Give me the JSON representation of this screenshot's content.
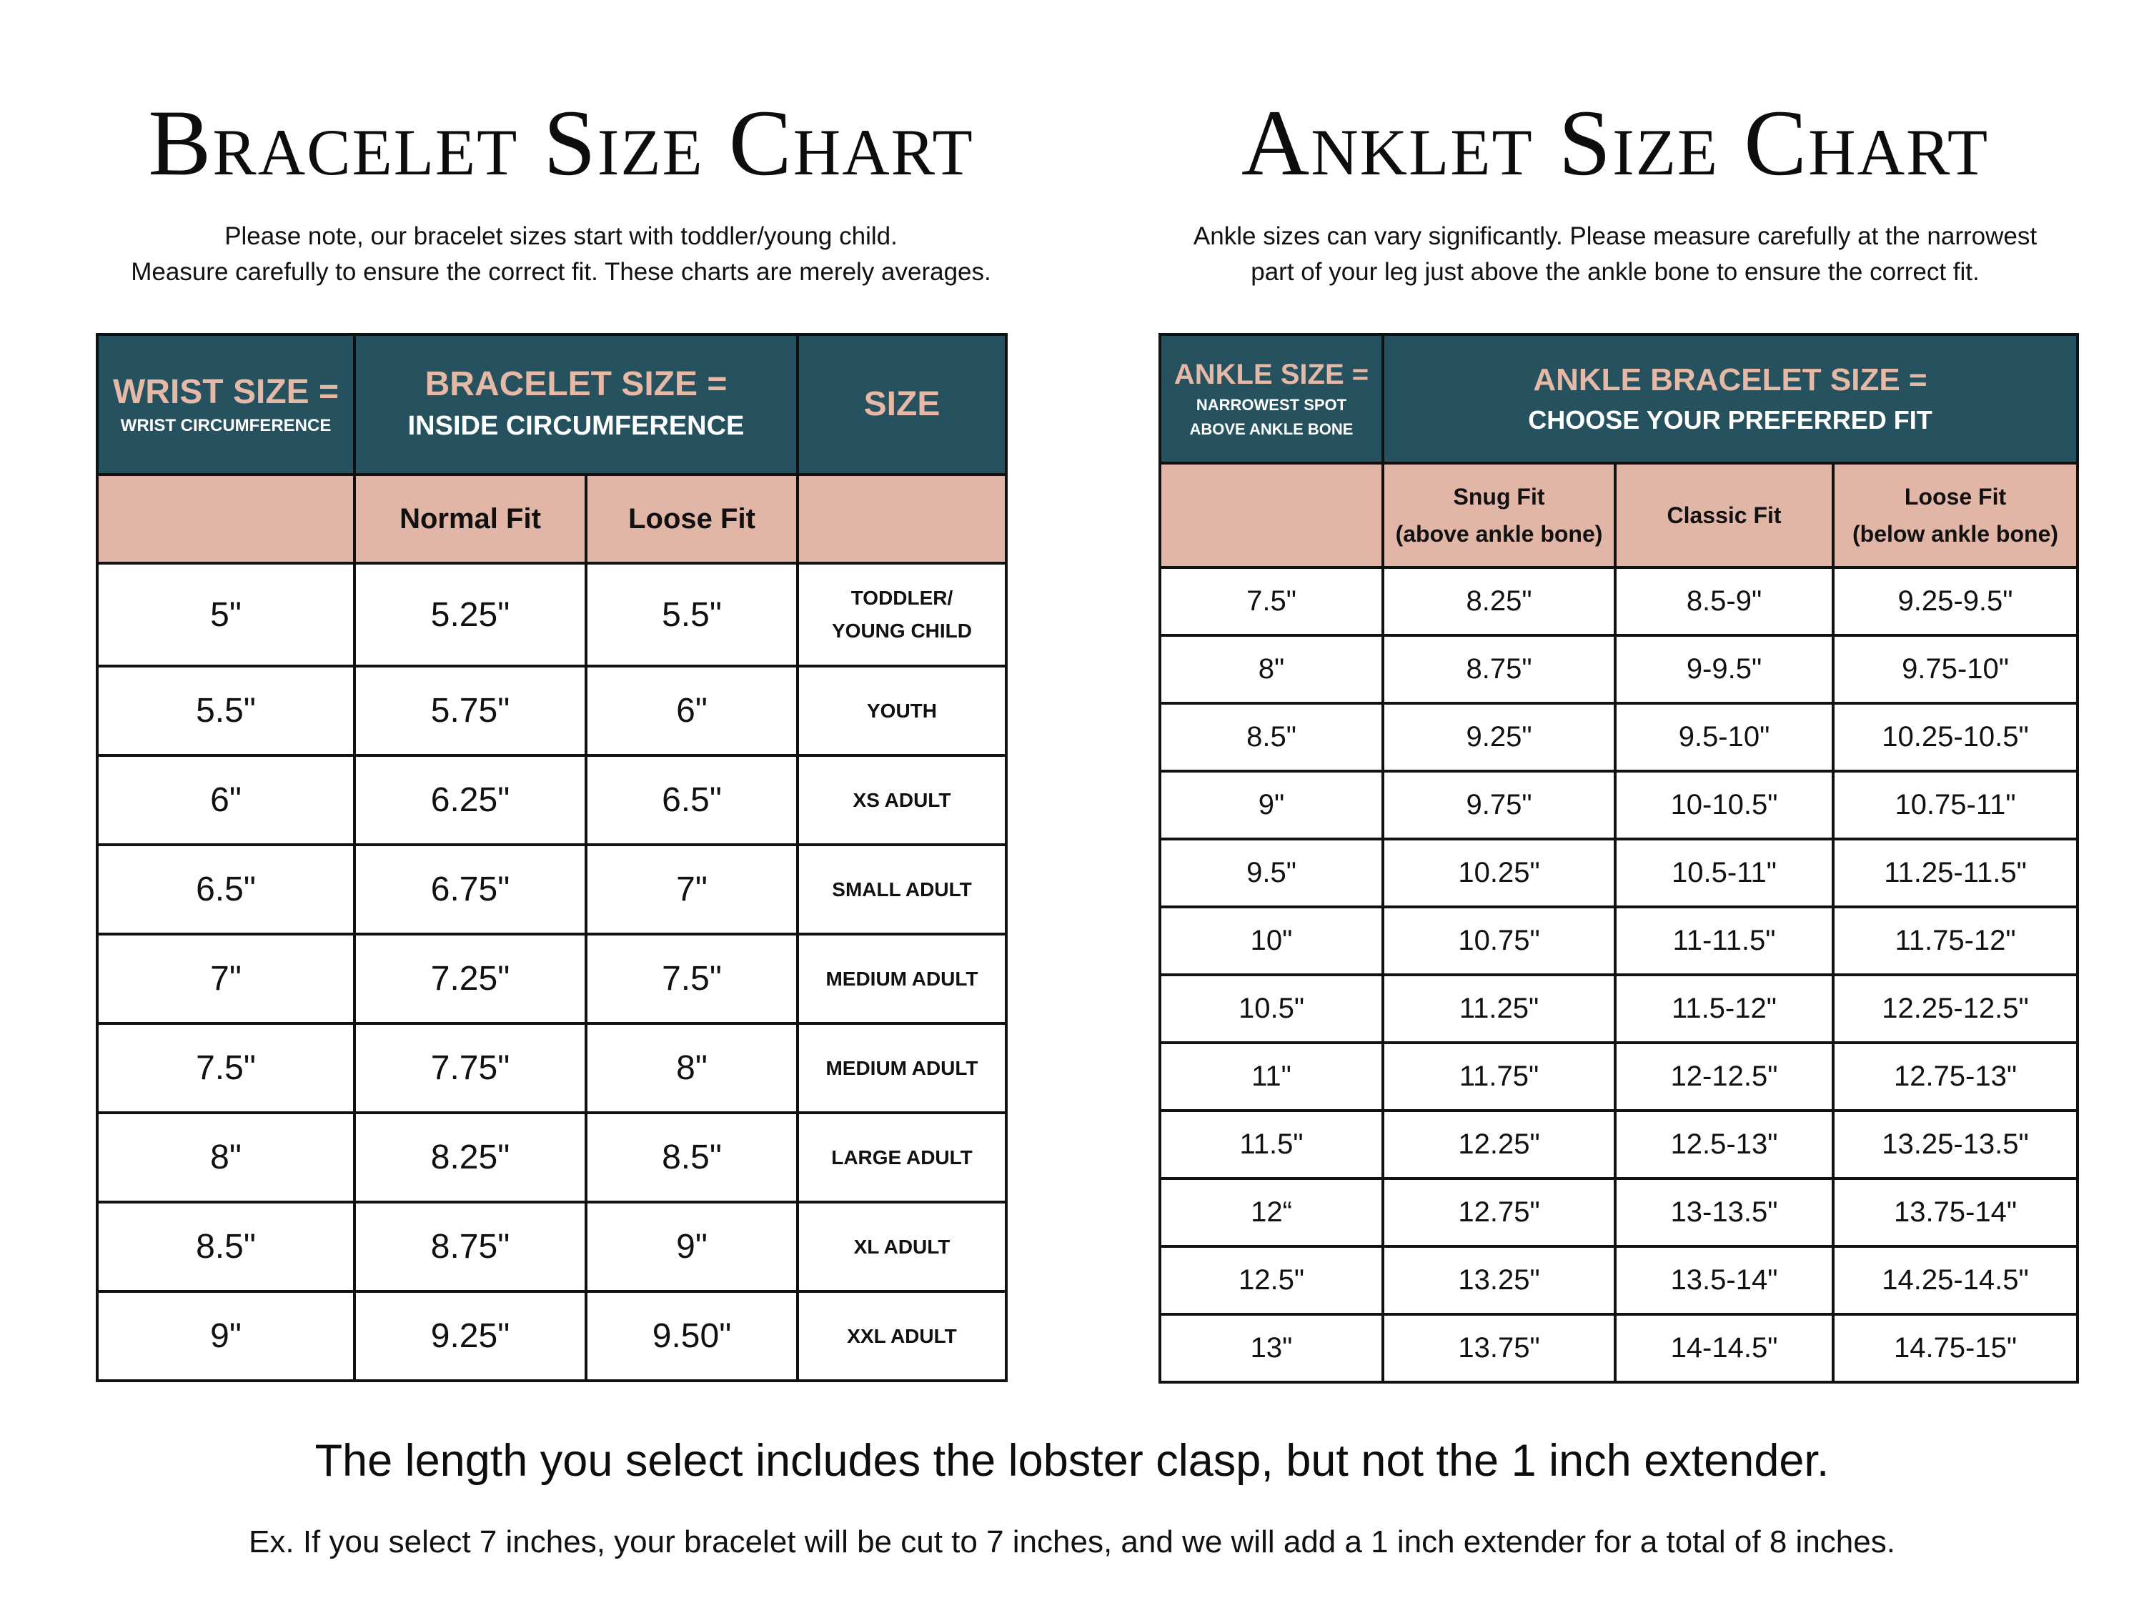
{
  "bracelet": {
    "title": "Bracelet Size Chart",
    "note_line1": "Please note, our bracelet sizes start with toddler/young child.",
    "note_line2": "Measure carefully to ensure the correct fit. These charts are merely averages.",
    "header": {
      "wrist_main": "WRIST SIZE =",
      "wrist_sub": "WRIST CIRCUMFERENCE",
      "bracelet_main": "BRACELET SIZE =",
      "bracelet_sub": "INSIDE CIRCUMFERENCE",
      "size": "SIZE",
      "normal_fit": "Normal Fit",
      "loose_fit": "Loose Fit"
    },
    "rows": [
      {
        "wrist": "5\"",
        "normal": "5.25\"",
        "loose": "5.5\"",
        "size1": "TODDLER/",
        "size2": "YOUNG CHILD"
      },
      {
        "wrist": "5.5\"",
        "normal": "5.75\"",
        "loose": "6\"",
        "size1": "YOUTH",
        "size2": ""
      },
      {
        "wrist": "6\"",
        "normal": "6.25\"",
        "loose": "6.5\"",
        "size1": "XS ADULT",
        "size2": ""
      },
      {
        "wrist": "6.5\"",
        "normal": "6.75\"",
        "loose": "7\"",
        "size1": "SMALL ADULT",
        "size2": ""
      },
      {
        "wrist": "7\"",
        "normal": "7.25\"",
        "loose": "7.5\"",
        "size1": "MEDIUM ADULT",
        "size2": ""
      },
      {
        "wrist": "7.5\"",
        "normal": "7.75\"",
        "loose": "8\"",
        "size1": "MEDIUM ADULT",
        "size2": ""
      },
      {
        "wrist": "8\"",
        "normal": "8.25\"",
        "loose": "8.5\"",
        "size1": "LARGE ADULT",
        "size2": ""
      },
      {
        "wrist": "8.5\"",
        "normal": "8.75\"",
        "loose": "9\"",
        "size1": "XL ADULT",
        "size2": ""
      },
      {
        "wrist": "9\"",
        "normal": "9.25\"",
        "loose": "9.50\"",
        "size1": "XXL ADULT",
        "size2": ""
      }
    ]
  },
  "anklet": {
    "title": "Anklet Size Chart",
    "note_line1": "Ankle sizes can vary significantly. Please measure carefully at the narrowest",
    "note_line2": "part of your leg just above the ankle bone to ensure the correct fit.",
    "header": {
      "ankle_main": "ANKLE SIZE =",
      "ankle_sub1": "NARROWEST SPOT",
      "ankle_sub2": "ABOVE ANKLE BONE",
      "bracelet_main": "ANKLE BRACELET SIZE =",
      "bracelet_sub": "CHOOSE YOUR PREFERRED FIT",
      "snug1": "Snug Fit",
      "snug2": "(above ankle bone)",
      "classic": "Classic Fit",
      "loose1": "Loose Fit",
      "loose2": "(below ankle bone)"
    },
    "rows": [
      {
        "ankle": "7.5\"",
        "snug": "8.25\"",
        "classic": "8.5-9\"",
        "loose": "9.25-9.5\""
      },
      {
        "ankle": "8\"",
        "snug": "8.75\"",
        "classic": "9-9.5\"",
        "loose": "9.75-10\""
      },
      {
        "ankle": "8.5\"",
        "snug": "9.25\"",
        "classic": "9.5-10\"",
        "loose": "10.25-10.5\""
      },
      {
        "ankle": "9\"",
        "snug": "9.75\"",
        "classic": "10-10.5\"",
        "loose": "10.75-11\""
      },
      {
        "ankle": "9.5\"",
        "snug": "10.25\"",
        "classic": "10.5-11\"",
        "loose": "11.25-11.5\""
      },
      {
        "ankle": "10\"",
        "snug": "10.75\"",
        "classic": "11-11.5\"",
        "loose": "11.75-12\""
      },
      {
        "ankle": "10.5\"",
        "snug": "11.25\"",
        "classic": "11.5-12\"",
        "loose": "12.25-12.5\""
      },
      {
        "ankle": "11\"",
        "snug": "11.75\"",
        "classic": "12-12.5\"",
        "loose": "12.75-13\""
      },
      {
        "ankle": "11.5\"",
        "snug": "12.25\"",
        "classic": "12.5-13\"",
        "loose": "13.25-13.5\""
      },
      {
        "ankle": "12“",
        "snug": "12.75\"",
        "classic": "13-13.5\"",
        "loose": "13.75-14\""
      },
      {
        "ankle": "12.5\"",
        "snug": "13.25\"",
        "classic": "13.5-14\"",
        "loose": "14.25-14.5\""
      },
      {
        "ankle": "13\"",
        "snug": "13.75\"",
        "classic": "14-14.5\"",
        "loose": "14.75-15\""
      }
    ]
  },
  "footer": {
    "line1": "The length you select includes the lobster clasp, but not the 1 inch extender.",
    "line2": "Ex. If you select 7 inches, your bracelet will be cut to 7 inches, and we will add a 1 inch extender for a total of 8 inches."
  },
  "colors": {
    "header_bg": "#265260",
    "header_accent_text": "#e6b8a6",
    "subheader_bg": "#e2b6a6"
  }
}
